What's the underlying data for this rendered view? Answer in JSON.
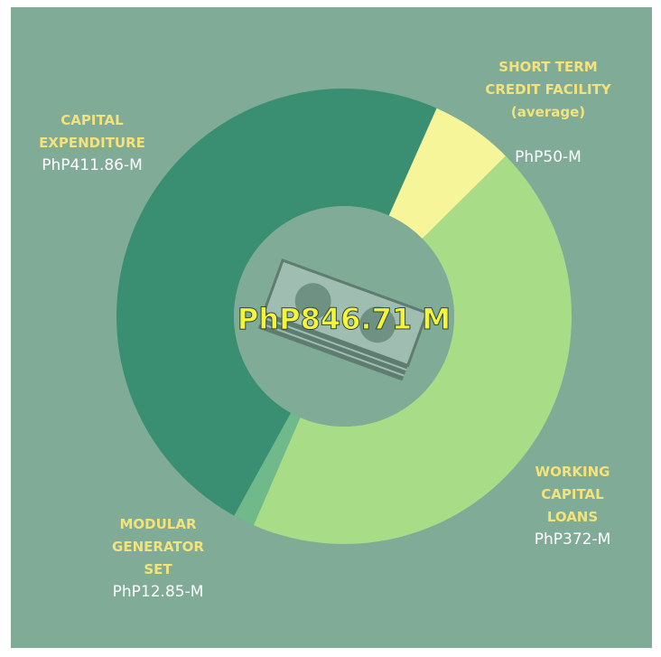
{
  "chart_data": {
    "type": "donut",
    "center_label": "PhP846.71 M",
    "categories": [
      "SHORT TERM CREDIT FACILITY (average)",
      "WORKING CAPITAL LOANS",
      "MODULAR GENERATOR SET",
      "CAPITAL EXPENDITURE"
    ],
    "values": [
      50,
      372,
      12.85,
      411.86
    ],
    "value_labels": [
      "PhP50-M",
      "PhP372-M",
      "PhP12.85-M",
      "PhP411.86-M"
    ],
    "colors": [
      "#f7f59a",
      "#a9dc87",
      "#6fb98a",
      "#3a8f73"
    ]
  }
}
